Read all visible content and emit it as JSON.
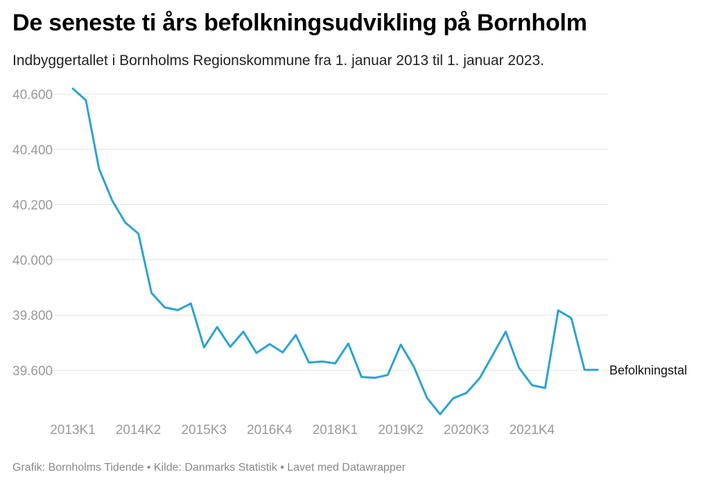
{
  "title": "De seneste ti års befolkningsudvikling på Bornholm",
  "subtitle": "Indbyggertallet i Bornholms Regionskommune fra 1. januar 2013 til 1. januar 2023.",
  "footer": "Grafik: Bornholms Tidende • Kilde: Danmarks Statistik • Lavet med Datawrapper",
  "colors": {
    "line": "#2aa3cf",
    "grid": "#e2e2e2",
    "tick": "#999999",
    "label": "#111111"
  },
  "chart_data": {
    "type": "line",
    "title": "De seneste ti års befolkningsudvikling på Bornholm",
    "subtitle": "Indbyggertallet i Bornholms Regionskommune fra 1. januar 2013 til 1. januar 2023.",
    "xlabel": "",
    "ylabel": "",
    "ylim": [
      39440,
      40640
    ],
    "yticks": [
      40600,
      40400,
      40200,
      40000,
      39800,
      39600
    ],
    "ytick_labels": [
      "40.600",
      "40.400",
      "40.200",
      "40.000",
      "39.800",
      "39.600"
    ],
    "xtick_labels": [
      "2013K1",
      "2014K2",
      "2015K3",
      "2016K4",
      "2018K1",
      "2019K2",
      "2020K3",
      "2021K4"
    ],
    "grid": true,
    "series": [
      {
        "name": "Befolkningstal",
        "x": [
          "2013K1",
          "2013K2",
          "2013K3",
          "2013K4",
          "2014K1",
          "2014K2",
          "2014K3",
          "2014K4",
          "2015K1",
          "2015K2",
          "2015K3",
          "2015K4",
          "2016K1",
          "2016K2",
          "2016K3",
          "2016K4",
          "2017K1",
          "2017K2",
          "2017K3",
          "2017K4",
          "2018K1",
          "2018K2",
          "2018K3",
          "2018K4",
          "2019K1",
          "2019K2",
          "2019K3",
          "2019K4",
          "2020K1",
          "2020K2",
          "2020K3",
          "2020K4",
          "2021K1",
          "2021K2",
          "2021K3",
          "2021K4",
          "2022K1",
          "2022K2",
          "2022K3",
          "2022K4",
          "2023K1"
        ],
        "values": [
          40620,
          40578,
          40330,
          40215,
          40135,
          40095,
          39880,
          39828,
          39818,
          39842,
          39683,
          39757,
          39685,
          39740,
          39663,
          39695,
          39665,
          39728,
          39628,
          39632,
          39625,
          39697,
          39576,
          39573,
          39583,
          39693,
          39613,
          39500,
          39441,
          39499,
          39518,
          39571,
          39655,
          39740,
          39610,
          39546,
          39536,
          39817,
          39789,
          39602,
          39602
        ]
      }
    ]
  }
}
